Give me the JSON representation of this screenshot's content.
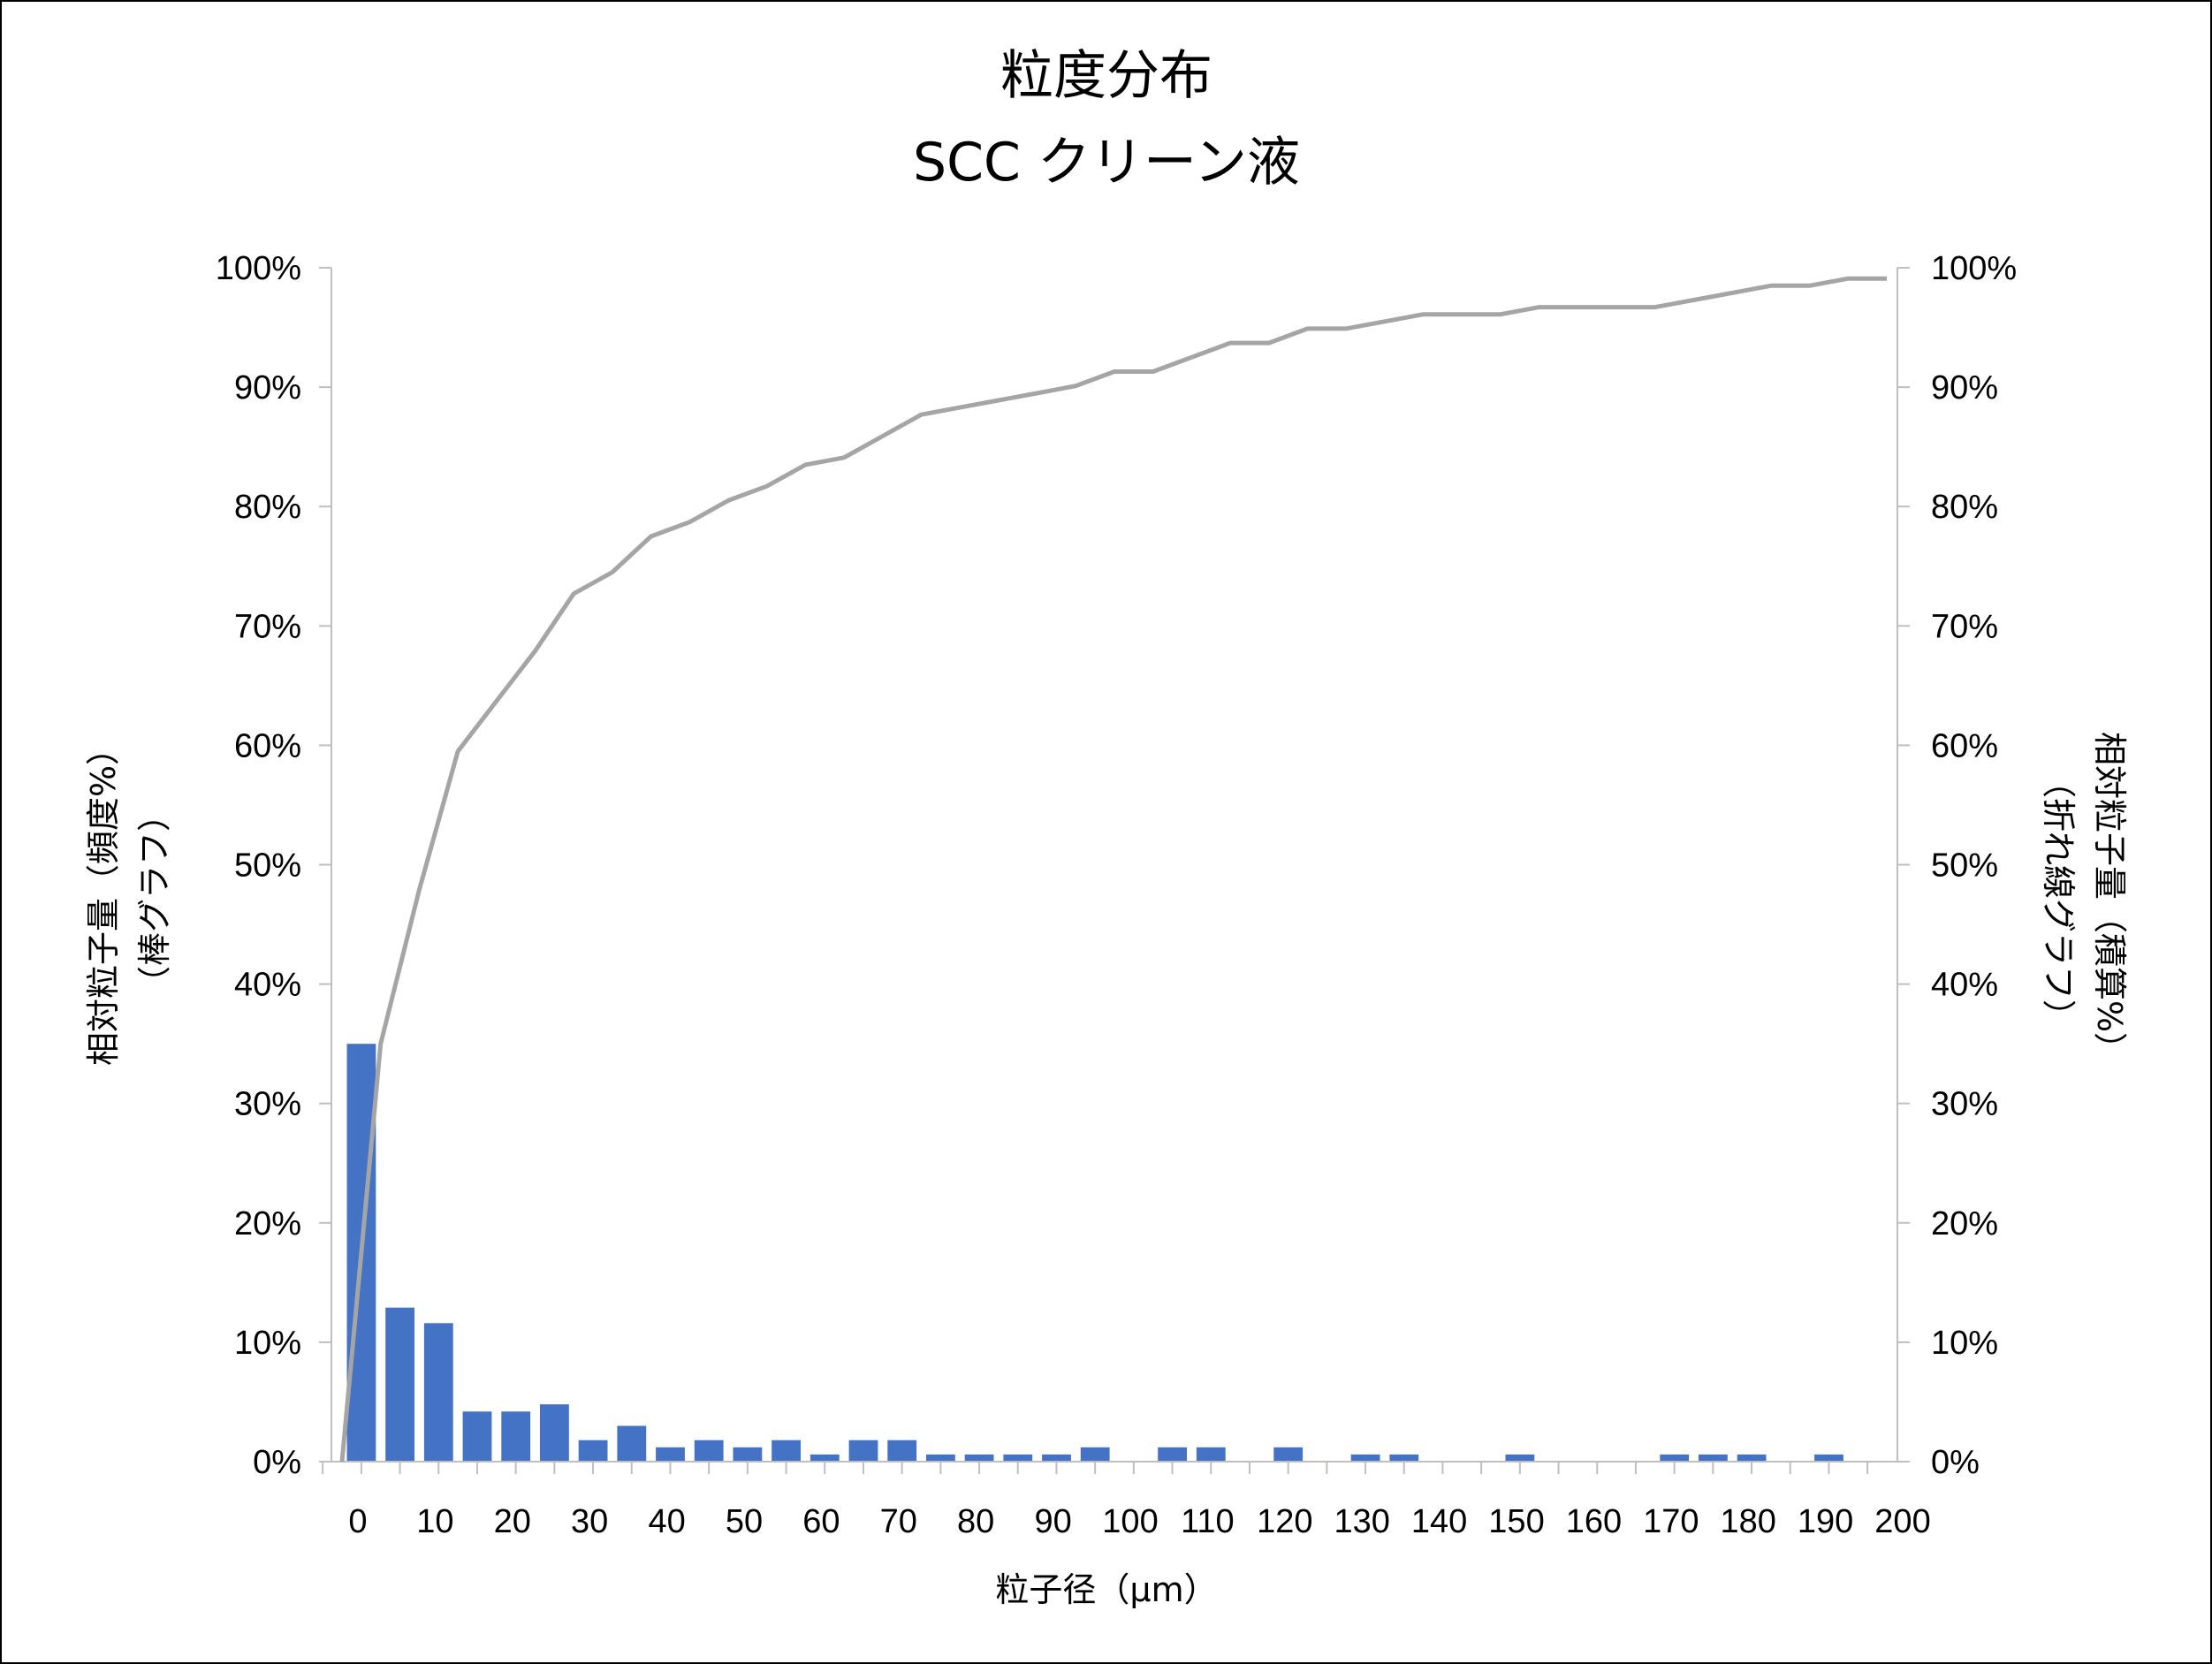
{
  "chart_data": {
    "type": "bar+line",
    "title": "粒度分布",
    "subtitle": "SCC クリーン液",
    "xlabel": "粒子径（μm）",
    "ylabel_left": [
      "相対粒子量（頻度%）",
      "（棒グラフ）"
    ],
    "ylabel_right": [
      "相対粒子量（積算%）",
      "（折れ線グラフ）"
    ],
    "x_ticks": [
      "0",
      "10",
      "20",
      "30",
      "40",
      "50",
      "60",
      "70",
      "80",
      "90",
      "100",
      "110",
      "120",
      "130",
      "140",
      "150",
      "160",
      "170",
      "180",
      "190",
      "200"
    ],
    "y_ticks_left": [
      "0%",
      "10%",
      "20%",
      "30%",
      "40%",
      "50%",
      "60%",
      "70%",
      "80%",
      "90%",
      "100%"
    ],
    "y_ticks_right": [
      "0%",
      "10%",
      "20%",
      "30%",
      "40%",
      "50%",
      "60%",
      "70%",
      "80%",
      "90%",
      "100%"
    ],
    "xlim": [
      0,
      200
    ],
    "ylim": [
      0,
      100
    ],
    "grid": false,
    "legend": "none",
    "colors": {
      "bar": "#4472C4",
      "line": "#A5A5A5",
      "axis": "#BFBFBF"
    },
    "bars": {
      "x": [
        5,
        10,
        15,
        20,
        25,
        30,
        35,
        40,
        45,
        50,
        55,
        60,
        65,
        70,
        75,
        80,
        85,
        90,
        95,
        100,
        105,
        110,
        115,
        120,
        125,
        130,
        135,
        140,
        145,
        150,
        155,
        160,
        165,
        170,
        175,
        180,
        185,
        190,
        195,
        200
      ],
      "values": [
        35,
        12.9,
        11.6,
        4.2,
        4.2,
        4.8,
        1.8,
        3.0,
        1.2,
        1.8,
        1.2,
        1.8,
        0.6,
        1.8,
        1.8,
        0.6,
        0.6,
        0.6,
        0.6,
        1.2,
        0,
        1.2,
        1.2,
        0,
        1.2,
        0,
        0.6,
        0.6,
        0,
        0,
        0.6,
        0,
        0,
        0,
        0.6,
        0.6,
        0.6,
        0,
        0.6,
        0
      ]
    },
    "line": {
      "x": [
        0,
        5,
        10,
        15,
        20,
        25,
        30,
        35,
        40,
        45,
        50,
        55,
        60,
        65,
        70,
        75,
        80,
        85,
        90,
        95,
        100,
        105,
        110,
        115,
        120,
        125,
        130,
        135,
        140,
        145,
        150,
        155,
        160,
        165,
        170,
        175,
        180,
        185,
        190,
        195,
        200
      ],
      "values": [
        0,
        35,
        47.9,
        59.5,
        63.7,
        67.9,
        72.7,
        74.5,
        77.5,
        78.7,
        80.5,
        81.7,
        83.5,
        84.1,
        85.9,
        87.7,
        88.3,
        88.9,
        89.5,
        90.1,
        91.3,
        91.3,
        92.5,
        93.7,
        93.7,
        94.9,
        94.9,
        95.5,
        96.1,
        96.1,
        96.1,
        96.7,
        96.7,
        96.7,
        96.7,
        97.3,
        97.9,
        98.5,
        98.5,
        99.1,
        99.1
      ]
    }
  }
}
